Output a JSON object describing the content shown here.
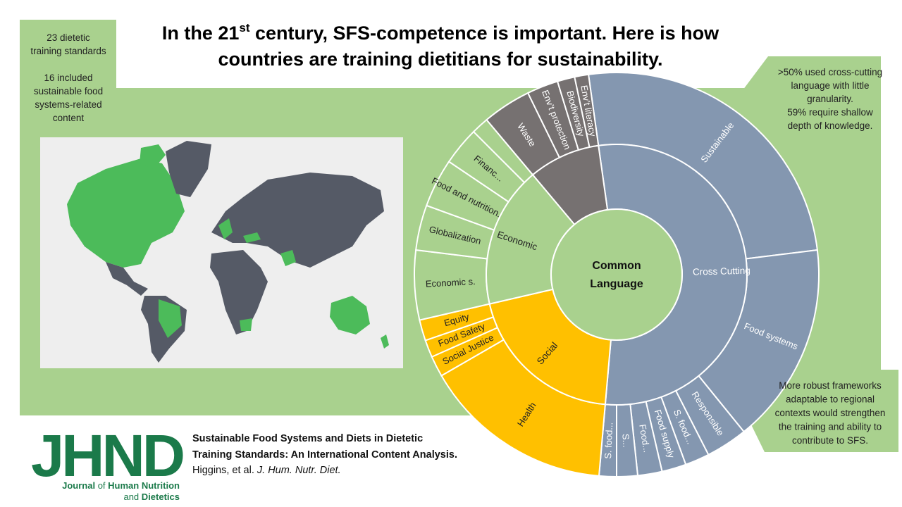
{
  "title": {
    "line1_start": "In the 21",
    "line1_sup": "st",
    "line1_end": " century, SFS-competence is important. Here is how",
    "line2": "countries are training dietitians for sustainability."
  },
  "callout_top_left": {
    "paragraphs": [
      [
        "23 dietetic",
        "training standards"
      ],
      [
        "16 included",
        "sustainable food",
        "systems-related",
        "content"
      ]
    ]
  },
  "callout_top_right": {
    "lines": [
      ">50% used cross-cutting",
      "language with little",
      "granularity.",
      "59% require shallow",
      "depth of knowledge."
    ]
  },
  "callout_bottom_right": {
    "lines": [
      "More robust frameworks",
      "adaptable to regional",
      "contexts would strengthen",
      "the training and ability to",
      "contribute to SFS."
    ]
  },
  "sunburst": {
    "center": [
      "Common",
      "Language"
    ],
    "groups": [
      {
        "label": "Cross Cutting",
        "color": "#8497b0",
        "text_color": "#ffffff",
        "children": [
          {
            "label": "Sustainable",
            "value": 91
          },
          {
            "label": "Food systems",
            "value": 58
          },
          {
            "label": "Responsible",
            "value": 12
          },
          {
            "label": "S. food...",
            "value": 7
          },
          {
            "label": "Food supply",
            "value": 7
          },
          {
            "label": "Food...",
            "value": 7
          },
          {
            "label": "S...",
            "value": 6
          },
          {
            "label": "S. food...",
            "value": 5
          }
        ]
      },
      {
        "label": "Social",
        "color": "#ffc000",
        "text_color": "#222222",
        "children": [
          {
            "label": "Health",
            "value": 55
          },
          {
            "label": "Social Justice",
            "value": 6
          },
          {
            "label": "Food Safety",
            "value": 5
          },
          {
            "label": "Equity",
            "value": 6
          }
        ]
      },
      {
        "label": "Economic",
        "color": "#a9d18e",
        "text_color": "#222222",
        "children": [
          {
            "label": "Economic s.",
            "value": 20
          },
          {
            "label": "Globalization",
            "value": 13
          },
          {
            "label": "Food and nutrition...",
            "value": 14
          },
          {
            "label": "Financ...",
            "value": 11
          },
          {
            "label": null,
            "value": 5
          }
        ]
      },
      {
        "label": null,
        "color": "#767171",
        "text_color": "#ffffff",
        "children": [
          {
            "label": "Waste",
            "value": 14
          },
          {
            "label": "Env’t protection",
            "value": 9
          },
          {
            "label": "Biodiversity",
            "value": 5
          },
          {
            "label": "Env’t literacy",
            "value": 4
          }
        ]
      }
    ]
  },
  "logo": {
    "letters": "JHND",
    "line1": [
      "Journal",
      "of",
      "Human Nutrition"
    ],
    "line2": [
      "and",
      "Dietetics"
    ]
  },
  "citation": {
    "title_lines": [
      "Sustainable Food Systems and Diets in Dietetic",
      "Training Standards: An International Content Analysis."
    ],
    "authors": "Higgins, et al.",
    "journal": "J. Hum. Nutr. Diet."
  }
}
